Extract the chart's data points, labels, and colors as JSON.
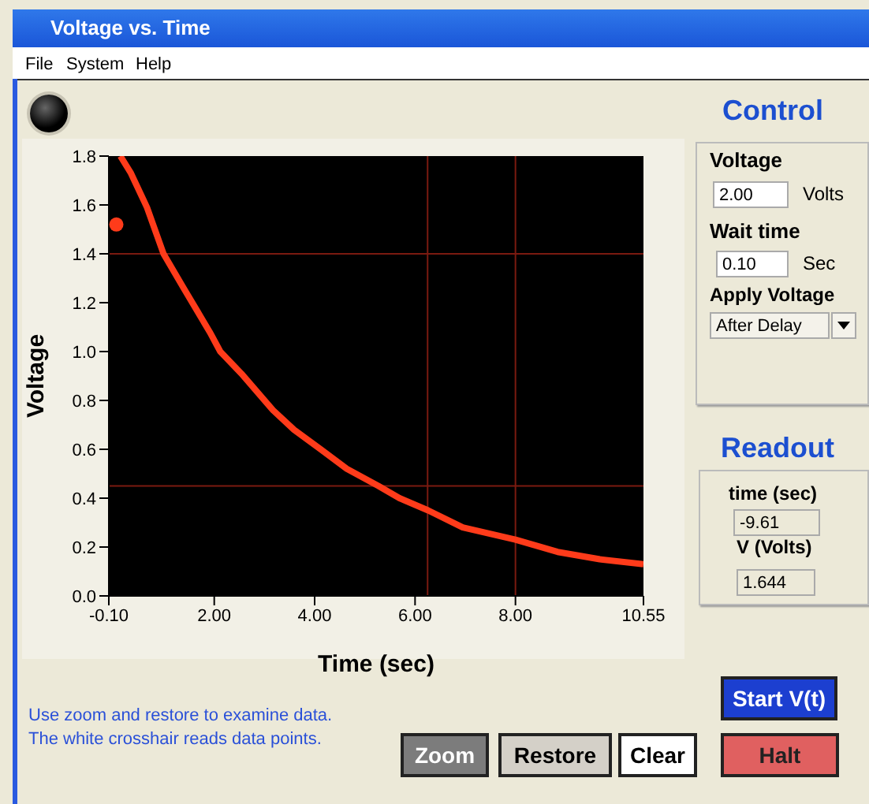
{
  "chart_data": {
    "type": "line",
    "title": "Voltage vs. Time",
    "xlabel": "Time (sec)",
    "ylabel": "Voltage",
    "xlim": [
      -0.1,
      10.55
    ],
    "xticks": [
      {
        "value": -0.1,
        "label": "-0.10"
      },
      {
        "value": 2,
        "label": "2.00"
      },
      {
        "value": 4,
        "label": "4.00"
      },
      {
        "value": 6,
        "label": "6.00"
      },
      {
        "value": 8,
        "label": "8.00"
      },
      {
        "value": 10.55,
        "label": "10.55"
      }
    ],
    "ylim": [
      0,
      1.8
    ],
    "yticks": [
      {
        "value": 0,
        "label": "0.0"
      },
      {
        "value": 0.2,
        "label": "0.2"
      },
      {
        "value": 0.4,
        "label": "0.4"
      },
      {
        "value": 0.6,
        "label": "0.6"
      },
      {
        "value": 0.8,
        "label": "0.8"
      },
      {
        "value": 1,
        "label": "1.0"
      },
      {
        "value": 1.2,
        "label": "1.2"
      },
      {
        "value": 1.4,
        "label": "1.4"
      },
      {
        "value": 1.6,
        "label": "1.6"
      },
      {
        "value": 1.8,
        "label": "1.8"
      }
    ],
    "grid": false,
    "series": [
      {
        "color": "#ff3b1a",
        "marker": "none",
        "x": [
          0.13,
          0.34,
          0.66,
          0.99,
          1.39,
          1.91,
          2.12,
          2.54,
          3.17,
          3.59,
          4.12,
          4.64,
          5.27,
          5.69,
          6.26,
          6.95,
          8.0,
          8.84,
          9.68,
          10.55
        ],
        "values": [
          1.8,
          1.73,
          1.59,
          1.4,
          1.26,
          1.08,
          1.0,
          0.91,
          0.76,
          0.68,
          0.6,
          0.52,
          0.45,
          0.4,
          0.35,
          0.28,
          0.23,
          0.18,
          0.15,
          0.13
        ]
      },
      {
        "type": "scatter",
        "color": "#ff3b1a",
        "marker": "circle",
        "x": [
          0.05
        ],
        "values": [
          1.52
        ]
      }
    ],
    "ref_lines": [
      {
        "axis": "x",
        "value": 6.25,
        "color": "#7a1a10"
      },
      {
        "axis": "x",
        "value": 8.0,
        "color": "#7a1a10"
      },
      {
        "axis": "y",
        "value": 1.4,
        "color": "#7a1a10"
      },
      {
        "axis": "y",
        "value": 0.45,
        "color": "#7a1a10"
      }
    ],
    "annotations": [
      "File",
      "System",
      "Help",
      "Control",
      "Voltage",
      "2.00",
      "Volts",
      "Wait time",
      "0.10",
      "Sec",
      "Apply Voltage",
      "After Delay",
      "Readout",
      "time (sec)",
      "-9.61",
      "V (Volts)",
      "1.644",
      "Use zoom and restore to examine data.",
      "The white crosshair reads data points.",
      "Zoom",
      "Restore",
      "Clear",
      "Start V(t)",
      "Halt"
    ]
  }
}
